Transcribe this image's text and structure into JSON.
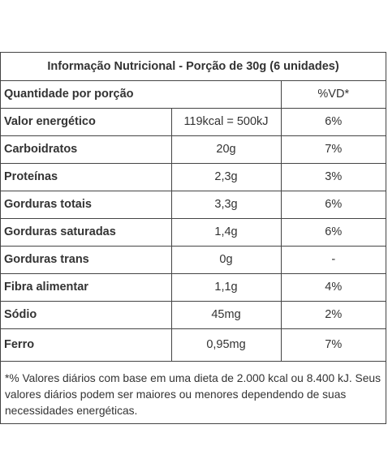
{
  "table": {
    "title": "Informação Nutricional - Porção de 30g (6 unidades)",
    "header": {
      "quantity": "Quantidade por porção",
      "vd": "%VD*"
    },
    "rows": [
      {
        "label": "Valor energético",
        "amount": "119kcal = 500kJ",
        "vd": "6%"
      },
      {
        "label": "Carboidratos",
        "amount": "20g",
        "vd": "7%"
      },
      {
        "label": "Proteínas",
        "amount": "2,3g",
        "vd": "3%"
      },
      {
        "label": "Gorduras totais",
        "amount": "3,3g",
        "vd": "6%"
      },
      {
        "label": "Gorduras saturadas",
        "amount": "1,4g",
        "vd": "6%"
      },
      {
        "label": "Gorduras trans",
        "amount": "0g",
        "vd": "-"
      },
      {
        "label": "Fibra alimentar",
        "amount": "1,1g",
        "vd": "4%"
      },
      {
        "label": "Sódio",
        "amount": "45mg",
        "vd": "2%"
      },
      {
        "label": "Ferro",
        "amount": "0,95mg",
        "vd": "7%"
      }
    ],
    "footnote": "*% Valores diários com base em uma dieta de 2.000 kcal ou 8.400 kJ. Seus valores diários podem ser maiores ou menores dependendo de suas necessidades energéticas."
  }
}
